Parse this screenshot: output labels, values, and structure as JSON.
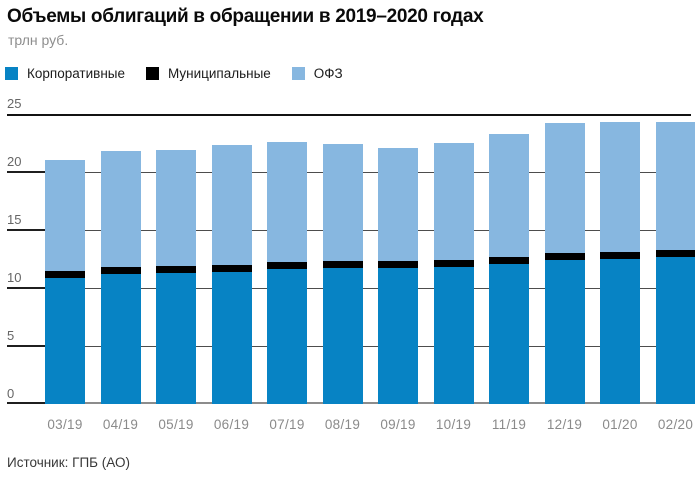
{
  "header": {
    "title": "Объемы облигаций в обращении в 2019–2020 годах",
    "subtitle": "трлн руб."
  },
  "source": "Источник: ГПБ (АО)",
  "colors": {
    "corporate": "#0783c4",
    "municipal": "#000000",
    "ofz": "#87b7e0"
  },
  "chart_data": {
    "type": "bar",
    "stacked": true,
    "title": "Объемы облигаций в обращении в 2019–2020 годах",
    "ylabel": "трлн руб.",
    "xlabel": "",
    "ylim": [
      0,
      25
    ],
    "yticks": [
      0,
      5,
      10,
      15,
      20,
      25
    ],
    "grid": true,
    "legend_position": "top",
    "categories": [
      "03/19",
      "04/19",
      "05/19",
      "06/19",
      "07/19",
      "08/19",
      "09/19",
      "10/19",
      "11/19",
      "12/19",
      "01/20",
      "02/20"
    ],
    "series": [
      {
        "name": "Корпоративные",
        "color": "#0783c4",
        "values": [
          10.9,
          11.2,
          11.3,
          11.4,
          11.6,
          11.7,
          11.7,
          11.8,
          12.1,
          12.4,
          12.5,
          12.7
        ]
      },
      {
        "name": "Муниципальные",
        "color": "#000000",
        "values": [
          0.6,
          0.6,
          0.6,
          0.6,
          0.6,
          0.6,
          0.6,
          0.6,
          0.6,
          0.6,
          0.6,
          0.6
        ]
      },
      {
        "name": "ОФЗ",
        "color": "#87b7e0",
        "values": [
          9.5,
          10.0,
          10.0,
          10.3,
          10.4,
          10.1,
          9.8,
          10.1,
          10.6,
          11.2,
          11.2,
          11.0
        ]
      }
    ],
    "totals": [
      21.0,
      21.8,
      21.9,
      22.3,
      22.6,
      22.4,
      22.1,
      22.5,
      23.3,
      24.2,
      24.3,
      24.3
    ]
  }
}
